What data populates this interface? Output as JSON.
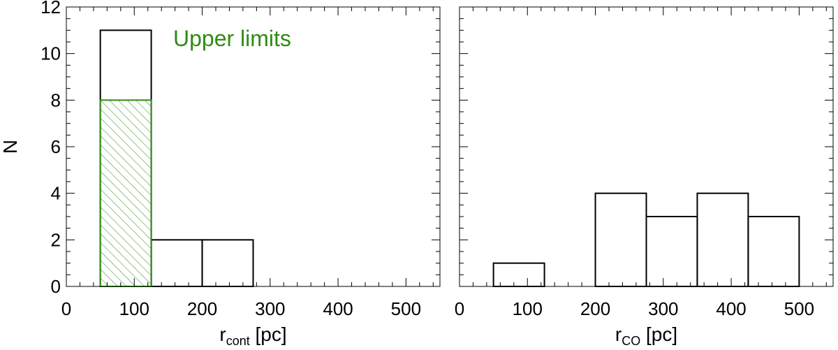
{
  "chart_data": [
    {
      "type": "bar",
      "histogram": true,
      "xlabel": "r",
      "xlabel_sub": "cont",
      "xlabel_unit": "[pc]",
      "ylabel": "N",
      "xlim": [
        0,
        550
      ],
      "ylim": [
        0,
        12
      ],
      "xticks": [
        0,
        100,
        200,
        300,
        400,
        500
      ],
      "yticks": [
        0,
        2,
        4,
        6,
        8,
        10,
        12
      ],
      "show_yticklabels": true,
      "annotation": "Upper limits",
      "colors": {
        "outline": "#000000",
        "upper_limits": "#2e8b13"
      },
      "series": [
        {
          "bins": [
            [
              50,
              125
            ],
            [
              125,
              200
            ],
            [
              200,
              275
            ]
          ],
          "values": [
            11,
            2,
            2
          ],
          "style": "outline"
        },
        {
          "name": "Upper limits",
          "bins": [
            [
              50,
              125
            ]
          ],
          "values": [
            8
          ],
          "style": "hatched"
        }
      ]
    },
    {
      "type": "bar",
      "histogram": true,
      "xlabel": "r",
      "xlabel_sub": "CO",
      "xlabel_unit": "[pc]",
      "ylabel": "",
      "xlim": [
        0,
        550
      ],
      "ylim": [
        0,
        12
      ],
      "xticks": [
        0,
        100,
        200,
        300,
        400,
        500
      ],
      "yticks": [
        0,
        2,
        4,
        6,
        8,
        10,
        12
      ],
      "show_yticklabels": false,
      "colors": {
        "outline": "#000000"
      },
      "series": [
        {
          "bins": [
            [
              50,
              125
            ],
            [
              125,
              200
            ],
            [
              200,
              275
            ],
            [
              275,
              350
            ],
            [
              350,
              425
            ],
            [
              425,
              500
            ]
          ],
          "values": [
            1,
            0,
            4,
            3,
            4,
            3
          ],
          "style": "outline"
        }
      ]
    }
  ]
}
